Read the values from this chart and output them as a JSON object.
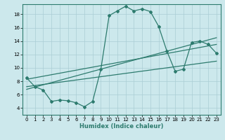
{
  "xlabel": "Humidex (Indice chaleur)",
  "bg_color": "#cce8ec",
  "line_color": "#2d7b6e",
  "grid_color": "#aacdd4",
  "xlim": [
    -0.5,
    23.5
  ],
  "ylim": [
    3.0,
    19.5
  ],
  "yticks": [
    4,
    6,
    8,
    10,
    12,
    14,
    16,
    18
  ],
  "xticks": [
    0,
    1,
    2,
    3,
    4,
    5,
    6,
    7,
    8,
    9,
    10,
    11,
    12,
    13,
    14,
    15,
    16,
    17,
    18,
    19,
    20,
    21,
    22,
    23
  ],
  "curve1_x": [
    0,
    1,
    2,
    3,
    4,
    5,
    6,
    7,
    8,
    9,
    10,
    11,
    12,
    13,
    14,
    15,
    16,
    17,
    18,
    19,
    20,
    21,
    22,
    23
  ],
  "curve1_y": [
    8.5,
    7.2,
    6.7,
    5.0,
    5.2,
    5.1,
    4.8,
    4.2,
    5.0,
    9.8,
    17.8,
    18.5,
    19.2,
    18.5,
    18.8,
    18.4,
    16.2,
    12.5,
    9.5,
    9.8,
    13.8,
    14.0,
    13.5,
    12.2
  ],
  "curve2_x": [
    0,
    23
  ],
  "curve2_y": [
    7.2,
    11.0
  ],
  "curve3_x": [
    0,
    23
  ],
  "curve3_y": [
    8.3,
    13.5
  ],
  "curve4_x": [
    0,
    23
  ],
  "curve4_y": [
    6.8,
    14.5
  ]
}
